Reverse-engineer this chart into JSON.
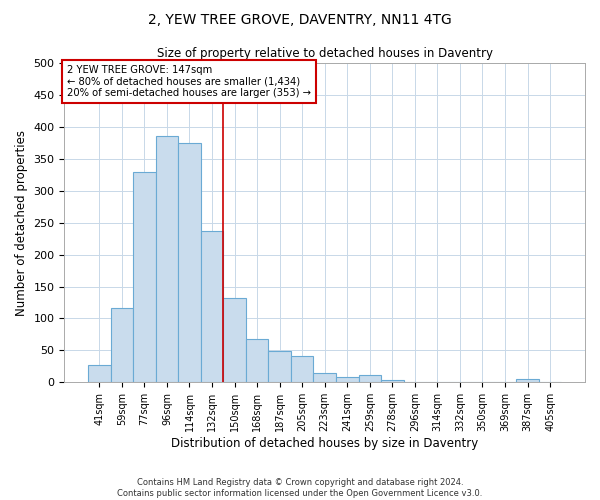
{
  "title_line1": "2, YEW TREE GROVE, DAVENTRY, NN11 4TG",
  "title_line2": "Size of property relative to detached houses in Daventry",
  "xlabel": "Distribution of detached houses by size in Daventry",
  "ylabel": "Number of detached properties",
  "categories": [
    "41sqm",
    "59sqm",
    "77sqm",
    "96sqm",
    "114sqm",
    "132sqm",
    "150sqm",
    "168sqm",
    "187sqm",
    "205sqm",
    "223sqm",
    "241sqm",
    "259sqm",
    "278sqm",
    "296sqm",
    "314sqm",
    "332sqm",
    "350sqm",
    "369sqm",
    "387sqm",
    "405sqm"
  ],
  "values": [
    27,
    116,
    330,
    385,
    375,
    237,
    132,
    68,
    49,
    42,
    15,
    8,
    11,
    4,
    1,
    1,
    1,
    0,
    0,
    6,
    0
  ],
  "bar_color": "#c9dced",
  "bar_edge_color": "#6aaad4",
  "annotation_line1": "2 YEW TREE GROVE: 147sqm",
  "annotation_line2": "← 80% of detached houses are smaller (1,434)",
  "annotation_line3": "20% of semi-detached houses are larger (353) →",
  "annotation_box_color": "#ffffff",
  "annotation_box_edge": "#cc0000",
  "vline_color": "#cc0000",
  "vline_x_index": 5.5,
  "ylim": [
    0,
    500
  ],
  "yticks": [
    0,
    50,
    100,
    150,
    200,
    250,
    300,
    350,
    400,
    450,
    500
  ],
  "footer_line1": "Contains HM Land Registry data © Crown copyright and database right 2024.",
  "footer_line2": "Contains public sector information licensed under the Open Government Licence v3.0.",
  "bg_color": "#ffffff",
  "plot_bg_color": "#ffffff",
  "grid_color": "#c8d8e8"
}
